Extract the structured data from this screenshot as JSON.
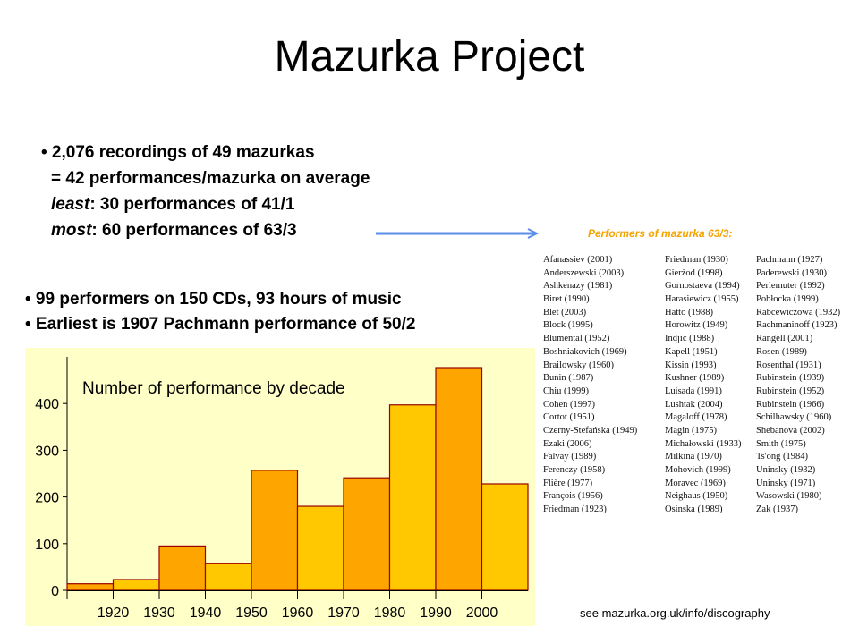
{
  "title": "Mazurka Project",
  "bullets_top": {
    "line1": "• 2,076 recordings of 49 mazurkas",
    "line2": "= 42 performances/mazurka on average",
    "line3_em": "least",
    "line3_rest": ": 30 performances of 41/1",
    "line4_em": "most",
    "line4_rest": ": 60 performances of 63/3"
  },
  "bullets_bottom": {
    "line1": "• 99 performers on 150 CDs, 93 hours of music",
    "line2": "• Earliest is 1907 Pachmann performance of 50/2"
  },
  "performers": {
    "caption": "Performers of mazurka 63/3:",
    "columns": [
      [
        "Afanassiev (2001)",
        "Anderszewski (2003)",
        "Ashkenazy (1981)",
        "Biret (1990)",
        "Blet (2003)",
        "Block (1995)",
        "Blumental (1952)",
        "Boshniakovich (1969)",
        "Brailowsky (1960)",
        "Bunin (1987)",
        "Chiu (1999)",
        "Cohen (1997)",
        "Cortot (1951)",
        "Czerny-Stefańska (1949)",
        "Ezaki (2006)",
        "Falvay (1989)",
        "Ferenczy (1958)",
        "Flière (1977)",
        "François (1956)",
        "Friedman (1923)"
      ],
      [
        "Friedman (1930)",
        "Gierżod (1998)",
        "Gornostaeva (1994)",
        "Harasiewicz (1955)",
        "Hatto (1988)",
        "Horowitz (1949)",
        "Indjic (1988)",
        "Kapell (1951)",
        "Kissin (1993)",
        "Kushner (1989)",
        "Luisada (1991)",
        "Lushtak (2004)",
        "Magaloff (1978)",
        "Magin (1975)",
        "Michałowski (1933)",
        "Milkina (1970)",
        "Mohovich (1999)",
        "Moravec (1969)",
        "Neighaus (1950)",
        "Osinska (1989)"
      ],
      [
        "Pachmann (1927)",
        "Paderewski (1930)",
        "Perlemuter (1992)",
        "Pobłocka (1999)",
        "Rabcewiczowa (1932)",
        "Rachmaninoff (1923)",
        "Rangell (2001)",
        "Rosen (1989)",
        "Rosenthal (1931)",
        "Rubinstein (1939)",
        "Rubinstein (1952)",
        "Rubinstein (1966)",
        "Schilhawsky (1960)",
        "Shebanova (2002)",
        "Smith (1975)",
        "Ts'ong (1984)",
        "Uninsky (1932)",
        "Uninsky (1971)",
        "Wasowski (1980)",
        "Zak (1937)"
      ]
    ]
  },
  "chart_data": {
    "type": "bar",
    "title": "Number of performance by decade",
    "categories": [
      "1910",
      "1920",
      "1930",
      "1940",
      "1950",
      "1960",
      "1970",
      "1980",
      "1990",
      "2000"
    ],
    "x_tick_labels": [
      "1920",
      "1930",
      "1940",
      "1950",
      "1960",
      "1970",
      "1980",
      "1990",
      "2000"
    ],
    "values": [
      14,
      23,
      95,
      57,
      257,
      180,
      241,
      397,
      477,
      228
    ],
    "ylim": [
      0,
      500
    ],
    "yticks": [
      0,
      100,
      200,
      300,
      400
    ],
    "xlabel": "",
    "ylabel": "",
    "grid": false,
    "colors": {
      "odd": "#ffa500",
      "even": "#ffc800",
      "background": "#ffffc8",
      "stroke": "#990000"
    }
  },
  "footer_note": "see mazurka.org.uk/info/discography"
}
